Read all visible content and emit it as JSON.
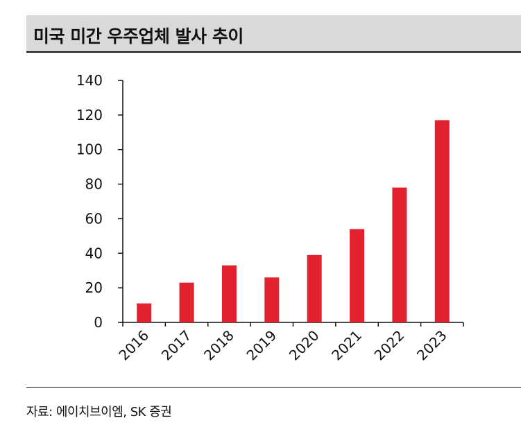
{
  "header": {
    "title": "미국 미간 우주업체 발사 추이"
  },
  "footer": {
    "source": "자료: 에이치브이엠, SK 증권"
  },
  "colors": {
    "bar": "#e1222e",
    "axis": "#111111",
    "title_bg": "#d9d9d9"
  },
  "chart_data": {
    "type": "bar",
    "categories": [
      "2016",
      "2017",
      "2018",
      "2019",
      "2020",
      "2021",
      "2022",
      "2023"
    ],
    "values": [
      11,
      23,
      33,
      26,
      39,
      54,
      78,
      117
    ],
    "ylim": [
      0,
      140
    ],
    "yticks": [
      0,
      20,
      40,
      60,
      80,
      100,
      120,
      140
    ],
    "grid": false,
    "legend": "none"
  }
}
